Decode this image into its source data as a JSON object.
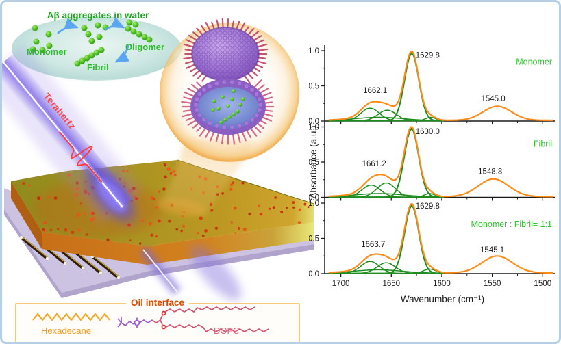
{
  "scene": {
    "aggregates": {
      "title": "Aβ aggregates in water",
      "monomer_label": "Monomer",
      "oligomer_label": "Oligomer",
      "fibril_label": "Fibril",
      "title_color": "#1fa51f",
      "label_color": "#2db82d",
      "dot_color": "#4bbf2f",
      "arrow_color": "#5aa6f2"
    },
    "terahertz": {
      "label": "Terahertz",
      "color": "#ff4545"
    },
    "oil_interface": {
      "title": "Oil interface",
      "title_color": "#e04a00",
      "border_color": "#f8c977",
      "hexadecane_label": "Hexadecane",
      "hexadecane_color": "#f59a23",
      "dopc_label": "DOPC",
      "dopc_color": "#e4647e"
    }
  },
  "chart_data": {
    "type": "line",
    "xlabel": "Wavenumber (cm⁻¹)",
    "ylabel": "Absorbance (a.u.)",
    "x_axis": {
      "min": 1488,
      "max": 1716,
      "reversed": true,
      "major_ticks": [
        1700,
        1650,
        1600,
        1550,
        1500
      ],
      "minor_ticks": [
        1675,
        1625,
        1575,
        1525
      ]
    },
    "y_axis": {
      "min": 0,
      "max": 1.05,
      "major_ticks": [
        0,
        0.5,
        1
      ],
      "tick_labels": [
        "0.0",
        "0.5",
        "1.0"
      ],
      "minor_ticks": [
        0.25,
        0.75
      ]
    },
    "colors": {
      "experimental": "#ff8c1a",
      "fit_components": "#1e8c1e",
      "annotation": "#1a1a1a",
      "panel_label": "#2dc62d",
      "axis": "#1a1a1a"
    },
    "baseline": 0.01,
    "fit_range": [
      1598,
      1712
    ],
    "full_range": [
      1490,
      1712
    ],
    "panels": [
      {
        "label": "Monomer",
        "annotations": [
          {
            "text": "1662.1",
            "wn": 1666,
            "a": 0.4
          },
          {
            "text": "1629.8",
            "wn": 1614,
            "a": 0.9
          },
          {
            "text": "1545.0",
            "wn": 1549,
            "a": 0.28
          }
        ],
        "label_a": 0.8,
        "components": [
          [
            1671,
            0.18,
            9
          ],
          [
            1654,
            0.15,
            9
          ],
          [
            1662,
            0.05,
            24
          ],
          [
            1611,
            0.05,
            5
          ],
          [
            1629.8,
            0.96,
            7
          ]
        ],
        "amide2_component": [
          1545.0,
          0.2,
          14
        ]
      },
      {
        "label": "Fibril",
        "annotations": [
          {
            "text": "1661.2",
            "wn": 1667,
            "a": 0.44
          },
          {
            "text": "1630.0",
            "wn": 1614,
            "a": 0.9
          },
          {
            "text": "1548.8",
            "wn": 1552,
            "a": 0.33
          }
        ],
        "label_a": 0.72,
        "components": [
          [
            1670,
            0.17,
            9
          ],
          [
            1655,
            0.2,
            9
          ],
          [
            1662,
            0.05,
            24
          ],
          [
            1612,
            0.05,
            5
          ],
          [
            1630.0,
            0.97,
            7
          ]
        ],
        "amide2_component": [
          1548.8,
          0.25,
          15
        ]
      },
      {
        "label": "Monomer : Fibril= 1:1",
        "annotations": [
          {
            "text": "1663.7",
            "wn": 1668,
            "a": 0.38
          },
          {
            "text": "1629.8",
            "wn": 1614,
            "a": 0.92
          },
          {
            "text": "1545.1",
            "wn": 1550,
            "a": 0.3
          }
        ],
        "label_a": 0.66,
        "components": [
          [
            1671,
            0.17,
            9
          ],
          [
            1655,
            0.15,
            9
          ],
          [
            1663,
            0.05,
            24
          ],
          [
            1612,
            0.06,
            6
          ],
          [
            1629.8,
            0.96,
            7
          ]
        ],
        "amide2_component": [
          1545.1,
          0.24,
          15
        ]
      }
    ]
  }
}
